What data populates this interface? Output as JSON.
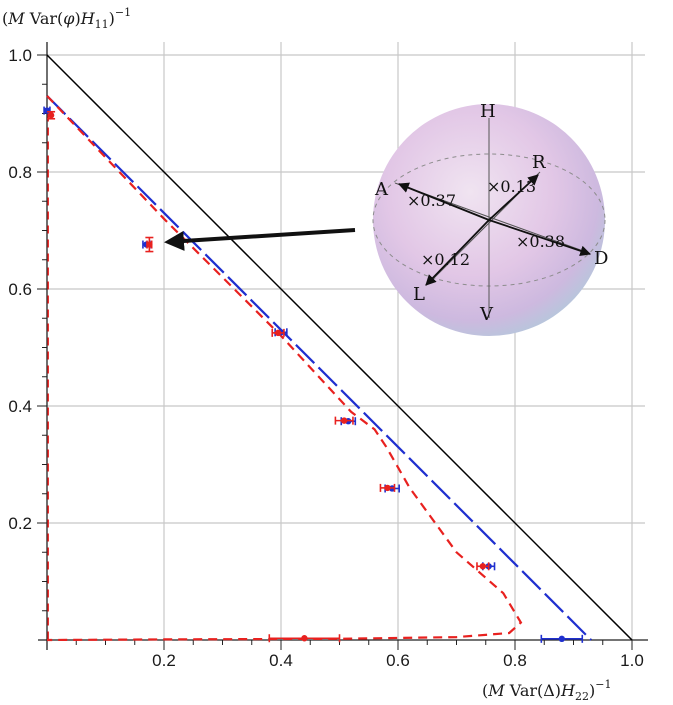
{
  "chart_data": {
    "type": "scatter",
    "title": "",
    "xlabel": "(M Var(Δ)H22)^-1",
    "ylabel": "(M Var(φ)H11)^-1",
    "xlim": [
      0,
      1.02
    ],
    "ylim": [
      0,
      1.02
    ],
    "xticks": [
      0.2,
      0.4,
      0.6,
      0.8,
      1.0
    ],
    "yticks": [
      0.2,
      0.4,
      0.6,
      0.8,
      1.0
    ],
    "xtick_labels": [
      "0.2",
      "0.4",
      "0.6",
      "0.8",
      "1.0"
    ],
    "ytick_labels": [
      "0.2",
      "0.4",
      "0.6",
      "0.8",
      "1.0"
    ],
    "grid": true,
    "series": [
      {
        "color": "#000000",
        "style": "solid",
        "points": [
          [
            0,
            1.0
          ],
          [
            1.0,
            0
          ]
        ]
      },
      {
        "color": "#1f2fcf",
        "style": "long-dash",
        "points": [
          [
            0,
            0.93
          ],
          [
            0.93,
            0
          ]
        ]
      },
      {
        "color": "#e8211f",
        "style": "short-dash",
        "points": [
          [
            0,
            0.93
          ],
          [
            0.2,
            0.72
          ],
          [
            0.4,
            0.52
          ],
          [
            0.52,
            0.39
          ],
          [
            0.56,
            0.36
          ],
          [
            0.58,
            0.33
          ],
          [
            0.62,
            0.26
          ],
          [
            0.7,
            0.15
          ],
          [
            0.78,
            0.08
          ],
          [
            0.81,
            0.03
          ],
          [
            0.79,
            0.012
          ],
          [
            0.7,
            0.005
          ],
          [
            0.5,
            0.002
          ],
          [
            0.2,
            0.001
          ],
          [
            0,
            0
          ]
        ]
      }
    ],
    "blue_points": [
      {
        "x": 0.0,
        "y": 0.905,
        "xerr": 0.005
      },
      {
        "x": 0.17,
        "y": 0.676,
        "xerr": 0.006
      },
      {
        "x": 0.4,
        "y": 0.526,
        "xerr": 0.01
      },
      {
        "x": 0.515,
        "y": 0.374,
        "xerr": 0.012
      },
      {
        "x": 0.59,
        "y": 0.259,
        "xerr": 0.012
      },
      {
        "x": 0.755,
        "y": 0.126,
        "xerr": 0.01
      },
      {
        "x": 0.88,
        "y": 0.002,
        "xerr": 0.035
      }
    ],
    "red_points": [
      {
        "x": 0.007,
        "y": 0.897,
        "yerr": 0.006
      },
      {
        "x": 0.175,
        "y": 0.676,
        "yerr": 0.012,
        "xerr": 0.004
      },
      {
        "x": 0.395,
        "y": 0.525,
        "xerr": 0.01
      },
      {
        "x": 0.508,
        "y": 0.375,
        "xerr": 0.015
      },
      {
        "x": 0.582,
        "y": 0.26,
        "xerr": 0.012
      },
      {
        "x": 0.745,
        "y": 0.126,
        "xerr": 0.01
      },
      {
        "x": 0.44,
        "y": 0.003,
        "xerr": 0.06
      }
    ]
  },
  "inset": {
    "pole_labels": {
      "H": "H",
      "V": "V",
      "D": "D",
      "A": "A",
      "R": "R",
      "L": "L"
    },
    "weights": {
      "A": "×0.37",
      "R": "×0.13",
      "D": "×0.38",
      "L": "×0.12"
    }
  },
  "colors": {
    "blue": "#1f2fcf",
    "red": "#e8211f",
    "grid": "#c8c8c8",
    "sphere": "#e6cde8"
  }
}
